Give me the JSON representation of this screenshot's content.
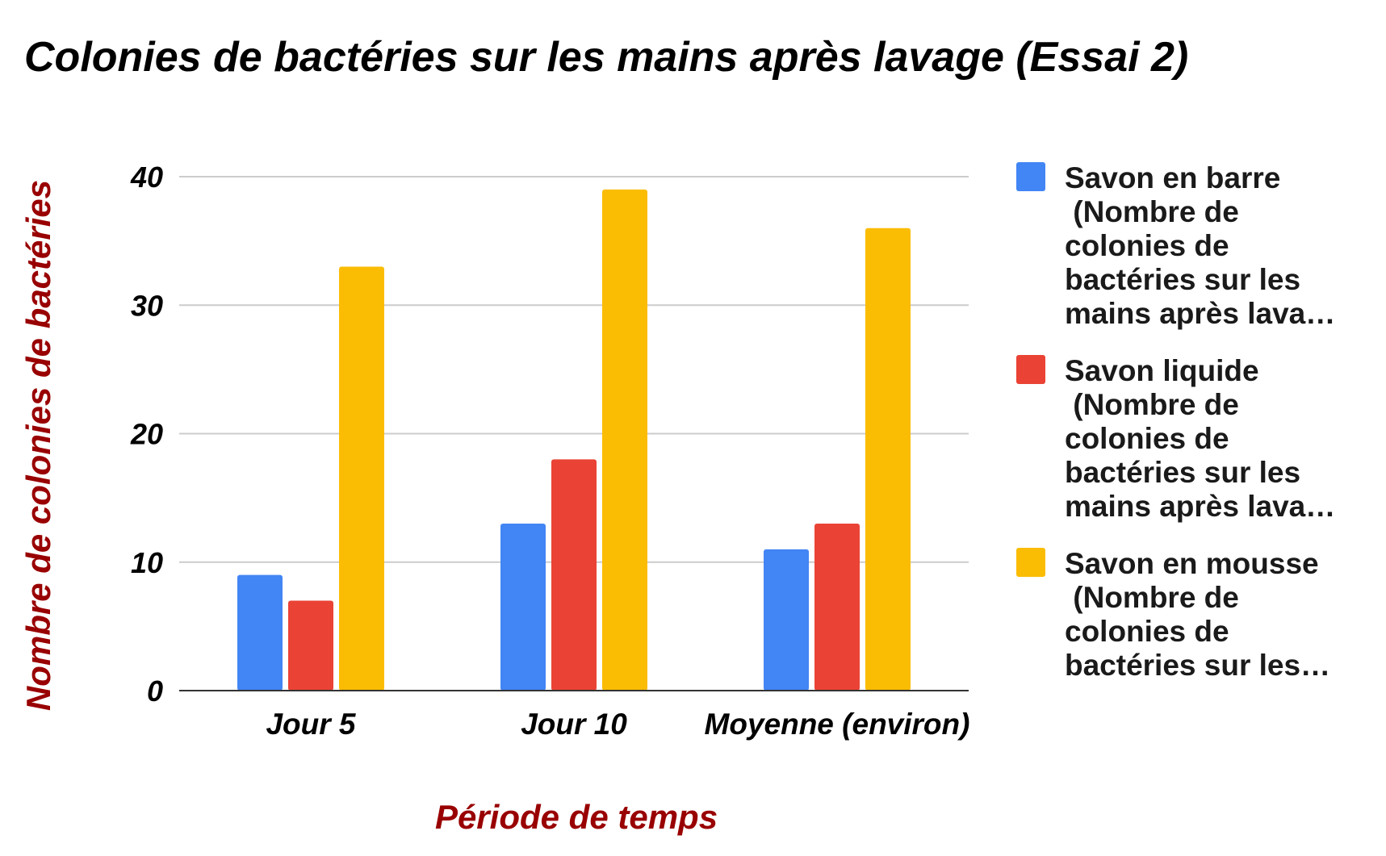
{
  "chart_data": {
    "type": "bar",
    "title": "Colonies de bactéries sur les mains après lavage (Essai 2)",
    "xlabel": "Période de temps",
    "ylabel": "Nombre de colonies de bactéries",
    "categories": [
      "Jour 5",
      "Jour 10",
      "Moyenne (environ)"
    ],
    "ylim": [
      0,
      40
    ],
    "yticks": [
      "0",
      "10",
      "20",
      "30",
      "40"
    ],
    "grid": true,
    "legend_position": "right",
    "axis_title_color": "#990000",
    "series": [
      {
        "name": "Savon en barre (Nombre de colonies de bactéries sur les mains après lava…",
        "legend_lines": [
          "Savon en barre",
          " (Nombre de",
          "colonies de",
          "bactéries sur les",
          "mains après lava…"
        ],
        "color": "#4285F4",
        "values": [
          9,
          13,
          11
        ]
      },
      {
        "name": "Savon liquide (Nombre de colonies de bactéries sur les mains après lava…",
        "legend_lines": [
          "Savon liquide",
          " (Nombre de",
          "colonies de",
          "bactéries sur les",
          "mains après lava…"
        ],
        "color": "#EA4335",
        "values": [
          7,
          18,
          13
        ]
      },
      {
        "name": "Savon en mousse (Nombre de colonies de bactéries sur les…",
        "legend_lines": [
          "Savon en mousse",
          " (Nombre de",
          "colonies de",
          "bactéries sur les…"
        ],
        "color": "#FBBC04",
        "values": [
          33,
          39,
          36
        ]
      }
    ]
  }
}
